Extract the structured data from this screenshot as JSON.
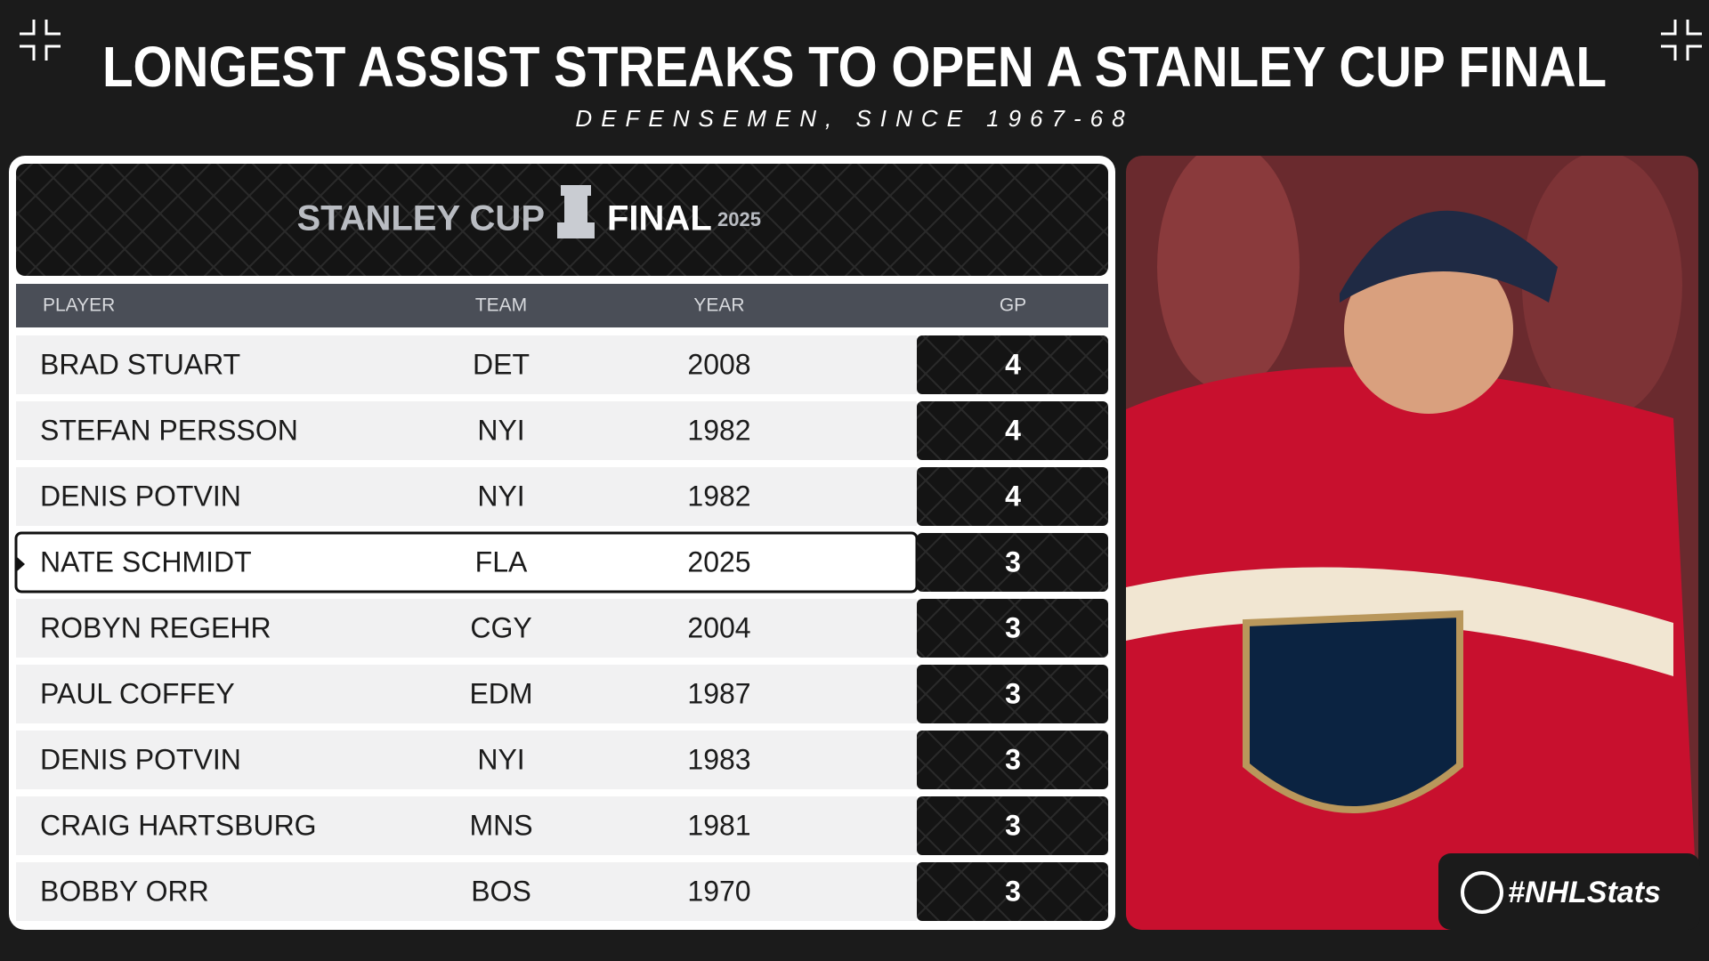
{
  "header": {
    "title": "LONGEST ASSIST STREAKS TO OPEN A STANLEY CUP FINAL",
    "subtitle": "DEFENSEMEN, SINCE 1967-68"
  },
  "logo": {
    "left": "STANLEY CUP",
    "right": "FINAL",
    "year": "2025"
  },
  "table": {
    "headers": [
      "PLAYER",
      "TEAM",
      "YEAR",
      "GP"
    ],
    "rows": [
      [
        "BRAD STUART",
        "DET",
        "2008",
        "4"
      ],
      [
        "STEFAN PERSSON",
        "NYI",
        "1982",
        "4"
      ],
      [
        "DENIS POTVIN",
        "NYI",
        "1982",
        "4"
      ],
      [
        "NATE SCHMIDT",
        "FLA",
        "2025",
        "3"
      ],
      [
        "ROBYN REGEHR",
        "CGY",
        "2004",
        "3"
      ],
      [
        "PAUL COFFEY",
        "EDM",
        "1987",
        "3"
      ],
      [
        "DENIS POTVIN",
        "NYI",
        "1983",
        "3"
      ],
      [
        "CRAIG HARTSBURG",
        "MNS",
        "1981",
        "3"
      ],
      [
        "BOBBY ORR",
        "BOS",
        "1970",
        "3"
      ]
    ]
  },
  "badge": "#NHLStats"
}
